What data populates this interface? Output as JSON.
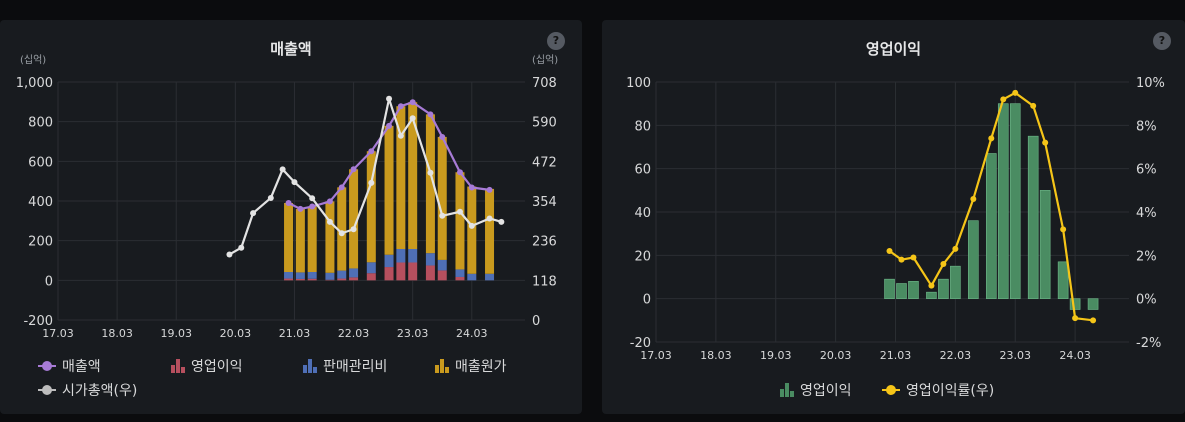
{
  "panels": [
    {
      "title": "매출액",
      "help": "?"
    },
    {
      "title": "영업이익",
      "help": "?"
    }
  ],
  "colors": {
    "revenue": "#a77bd6",
    "op_profit_bar": "#b64f5e",
    "sga": "#4f6fb6",
    "cogs": "#c99a1e",
    "market_cap": "#e3e3e3",
    "op_bar": "#4a8c62",
    "op_margin": "#f5c518",
    "grid": "#2b2e33",
    "tick": "#d8d9da"
  },
  "chart_data": [
    {
      "type": "bar",
      "title": "매출액",
      "left_unit": "(십억)",
      "right_unit": "(십억)",
      "x_ticks": [
        "17.03",
        "18.03",
        "19.03",
        "20.03",
        "21.03",
        "22.03",
        "23.03",
        "24.03"
      ],
      "y_left_ticks": [
        "1,000",
        "800",
        "600",
        "400",
        "200",
        "0",
        "-200"
      ],
      "y_right_ticks": [
        "708",
        "590",
        "472",
        "354",
        "236",
        "118",
        "0"
      ],
      "ylim_left": [
        -200,
        1000
      ],
      "ylim_right": [
        0,
        708
      ],
      "grid": true,
      "legend": [
        {
          "name": "매출액",
          "kind": "line-marker",
          "color": "#a77bd6"
        },
        {
          "name": "영업이익",
          "kind": "bar",
          "color": "#b64f5e"
        },
        {
          "name": "판매관리비",
          "kind": "bar",
          "color": "#4f6fb6"
        },
        {
          "name": "매출원가",
          "kind": "bar",
          "color": "#c99a1e"
        },
        {
          "name": "시가총액(우)",
          "kind": "line-marker",
          "color": "#bdbdbd"
        }
      ],
      "bar_x": [
        20.9,
        21.1,
        21.3,
        21.6,
        21.8,
        22.0,
        22.3,
        22.6,
        22.8,
        23.0,
        23.3,
        23.5,
        23.8,
        24.0,
        24.3
      ],
      "series": [
        {
          "name": "영업이익",
          "values": [
            9,
            7,
            8,
            3,
            9,
            15,
            36,
            67,
            90,
            90,
            75,
            50,
            17,
            -5,
            -5
          ]
        },
        {
          "name": "판매관리비",
          "values": [
            33,
            33,
            34,
            35,
            40,
            45,
            55,
            62,
            68,
            68,
            62,
            53,
            38,
            33,
            33
          ]
        },
        {
          "name": "매출원가",
          "values": [
            348,
            320,
            330,
            360,
            420,
            500,
            560,
            650,
            720,
            740,
            700,
            620,
            490,
            440,
            428
          ]
        },
        {
          "name": "매출액",
          "values": [
            390,
            360,
            372,
            398,
            469,
            560,
            651,
            779,
            878,
            898,
            837,
            723,
            545,
            468,
            456
          ]
        }
      ],
      "market_cap": {
        "x": [
          19.9,
          20.1,
          20.3,
          20.6,
          20.8,
          21.0,
          21.3,
          21.6,
          21.8,
          22.0,
          22.3,
          22.6,
          22.8,
          23.0,
          23.3,
          23.5,
          23.8,
          24.0,
          24.3,
          24.5
        ],
        "values": [
          195,
          215,
          318,
          363,
          448,
          410,
          362,
          292,
          258,
          270,
          408,
          658,
          548,
          600,
          438,
          310,
          322,
          280,
          302,
          292
        ]
      }
    },
    {
      "type": "bar",
      "title": "영업이익",
      "x_ticks": [
        "17.03",
        "18.03",
        "19.03",
        "20.03",
        "21.03",
        "22.03",
        "23.03",
        "24.03"
      ],
      "y_left_ticks": [
        "100",
        "80",
        "60",
        "40",
        "20",
        "0",
        "-20"
      ],
      "y_right_ticks": [
        "10%",
        "8%",
        "6%",
        "4%",
        "2%",
        "0%",
        "-2%"
      ],
      "ylim_left": [
        -20,
        100
      ],
      "ylim_right": [
        -2,
        10
      ],
      "grid": true,
      "legend": [
        {
          "name": "영업이익",
          "kind": "bar",
          "color": "#4a8c62"
        },
        {
          "name": "영업이익률(우)",
          "kind": "line-marker",
          "color": "#f5c518"
        }
      ],
      "bar_x": [
        20.9,
        21.1,
        21.3,
        21.6,
        21.8,
        22.0,
        22.3,
        22.6,
        22.8,
        23.0,
        23.3,
        23.5,
        23.8,
        24.0,
        24.3
      ],
      "series": [
        {
          "name": "영업이익",
          "values": [
            9,
            7,
            8,
            3,
            9,
            15,
            36,
            67,
            90,
            90,
            75,
            50,
            17,
            -5,
            -5
          ]
        },
        {
          "name": "영업이익률(우)",
          "values": [
            2.2,
            1.8,
            1.9,
            0.6,
            1.6,
            2.3,
            4.6,
            7.4,
            9.2,
            9.5,
            8.9,
            7.2,
            3.2,
            -0.9,
            -1.0
          ]
        }
      ]
    }
  ]
}
